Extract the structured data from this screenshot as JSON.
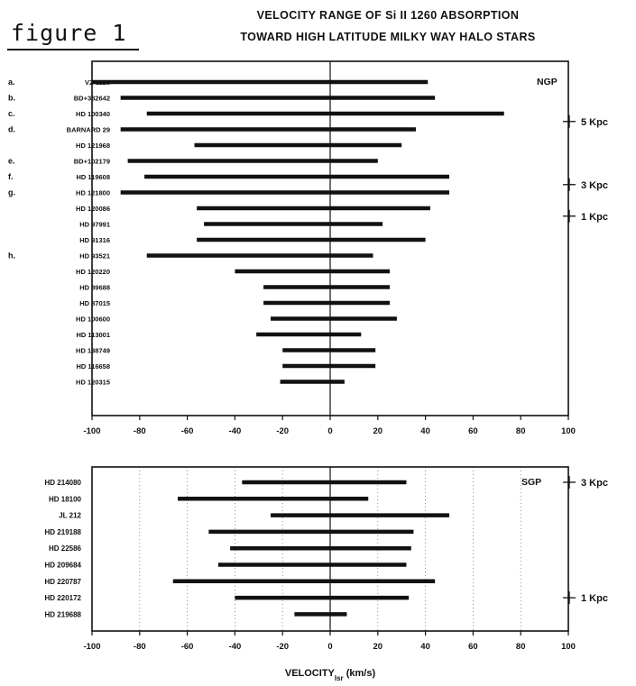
{
  "figure_label": "figure 1",
  "title_lines": [
    "VELOCITY RANGE OF Si II 1260 ABSORPTION",
    "TOWARD HIGH LATITUDE MILKY WAY HALO STARS"
  ],
  "chart_data": [
    {
      "type": "bar",
      "subtype": "horizontal-range",
      "panel_label": "NGP",
      "xlim": [
        -100,
        100
      ],
      "xticks": [
        -100,
        -80,
        -60,
        -40,
        -20,
        0,
        20,
        40,
        60,
        80,
        100
      ],
      "grid": false,
      "zero_line": true,
      "rows": [
        {
          "letter": "a.",
          "star": "VZ 1128",
          "min": -100,
          "max": 41
        },
        {
          "letter": "b.",
          "star": "BD+382642",
          "min": -88,
          "max": 44
        },
        {
          "letter": "c.",
          "star": "HD 100340",
          "min": -77,
          "max": 73
        },
        {
          "letter": "d.",
          "star": "BARNARD 29",
          "min": -88,
          "max": 36
        },
        {
          "letter": "",
          "star": "HD 121968",
          "min": -57,
          "max": 30
        },
        {
          "letter": "e.",
          "star": "BD+102179",
          "min": -85,
          "max": 20
        },
        {
          "letter": "f.",
          "star": "HD 119608",
          "min": -78,
          "max": 50
        },
        {
          "letter": "g.",
          "star": "HD 121800",
          "min": -88,
          "max": 50
        },
        {
          "letter": "",
          "star": "HD 120086",
          "min": -56,
          "max": 42
        },
        {
          "letter": "",
          "star": "HD 97991",
          "min": -53,
          "max": 22
        },
        {
          "letter": "",
          "star": "HD 91316",
          "min": -56,
          "max": 40
        },
        {
          "letter": "h.",
          "star": "HD 93521",
          "min": -77,
          "max": 18
        },
        {
          "letter": "",
          "star": "HD 120220",
          "min": -40,
          "max": 25
        },
        {
          "letter": "",
          "star": "HD 89688",
          "min": -28,
          "max": 25
        },
        {
          "letter": "",
          "star": "HD 87015",
          "min": -28,
          "max": 25
        },
        {
          "letter": "",
          "star": "HD 100600",
          "min": -25,
          "max": 28
        },
        {
          "letter": "",
          "star": "HD 113001",
          "min": -31,
          "max": 13
        },
        {
          "letter": "",
          "star": "HD 138749",
          "min": -20,
          "max": 19
        },
        {
          "letter": "",
          "star": "HD 116658",
          "min": -20,
          "max": 19
        },
        {
          "letter": "",
          "star": "HD 120315",
          "min": -21,
          "max": 6
        }
      ],
      "distance_markers": [
        {
          "label": "5 Kpc",
          "row": 2.5
        },
        {
          "label": "3 Kpc",
          "row": 6.5
        },
        {
          "label": "1 Kpc",
          "row": 8.5
        }
      ]
    },
    {
      "type": "bar",
      "subtype": "horizontal-range",
      "panel_label": "SGP",
      "xlim": [
        -100,
        100
      ],
      "xticks": [
        -100,
        -80,
        -60,
        -40,
        -20,
        0,
        20,
        40,
        60,
        80,
        100
      ],
      "grid": true,
      "zero_line": true,
      "xlabel": "VELOCITY",
      "xlabel_sub": "lsr",
      "xlabel_unit": " (km/s)",
      "rows": [
        {
          "letter": "",
          "star": "HD 214080",
          "min": -37,
          "max": 32
        },
        {
          "letter": "",
          "star": "HD 18100",
          "min": -64,
          "max": 16
        },
        {
          "letter": "",
          "star": "JL 212",
          "min": -25,
          "max": 50
        },
        {
          "letter": "",
          "star": "HD 219188",
          "min": -51,
          "max": 35
        },
        {
          "letter": "",
          "star": "HD 22586",
          "min": -42,
          "max": 34
        },
        {
          "letter": "",
          "star": "HD 209684",
          "min": -47,
          "max": 32
        },
        {
          "letter": "",
          "star": "HD 220787",
          "min": -66,
          "max": 44
        },
        {
          "letter": "",
          "star": "HD 220172",
          "min": -40,
          "max": 33
        },
        {
          "letter": "",
          "star": "HD 219688",
          "min": -15,
          "max": 7
        }
      ],
      "distance_markers": [
        {
          "label": "3 Kpc",
          "row": 0
        },
        {
          "label": "1 Kpc",
          "row": 7
        }
      ]
    }
  ]
}
